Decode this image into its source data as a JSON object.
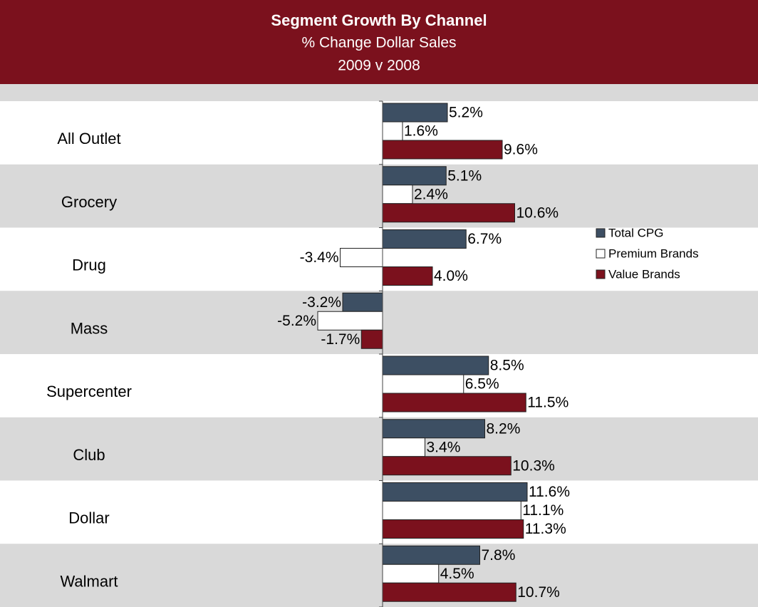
{
  "chart_data": {
    "type": "bar",
    "orientation": "horizontal",
    "title": "Segment Growth By Channel",
    "subtitle": [
      "% Change Dollar Sales",
      "2009 v 2008"
    ],
    "categories": [
      "All Outlet",
      "Grocery",
      "Drug",
      "Mass",
      "Supercenter",
      "Club",
      "Dollar",
      "Walmart"
    ],
    "series": [
      {
        "name": "Total CPG",
        "color": "#3d4f63",
        "values": [
          5.2,
          5.1,
          6.7,
          -3.2,
          8.5,
          8.2,
          11.6,
          7.8
        ],
        "value_labels": [
          "5.2%",
          "5.1%",
          "6.7%",
          "-3.2%",
          "8.5%",
          "8.2%",
          "11.6%",
          "7.8%"
        ]
      },
      {
        "name": "Premium Brands",
        "color": "#ffffff",
        "values": [
          1.6,
          2.4,
          -3.4,
          -5.2,
          6.5,
          3.4,
          11.1,
          4.5
        ],
        "value_labels": [
          "1.6%",
          "2.4%",
          "-3.4%",
          "-5.2%",
          "6.5%",
          "3.4%",
          "11.1%",
          "4.5%"
        ]
      },
      {
        "name": "Value Brands",
        "color": "#7b111d",
        "values": [
          9.6,
          10.6,
          4.0,
          -1.7,
          11.5,
          10.3,
          11.3,
          10.7
        ],
        "value_labels": [
          "9.6%",
          "10.6%",
          "4.0%",
          "-1.7%",
          "11.5%",
          "10.3%",
          "11.3%",
          "10.7%"
        ]
      }
    ],
    "legend": "right"
  }
}
